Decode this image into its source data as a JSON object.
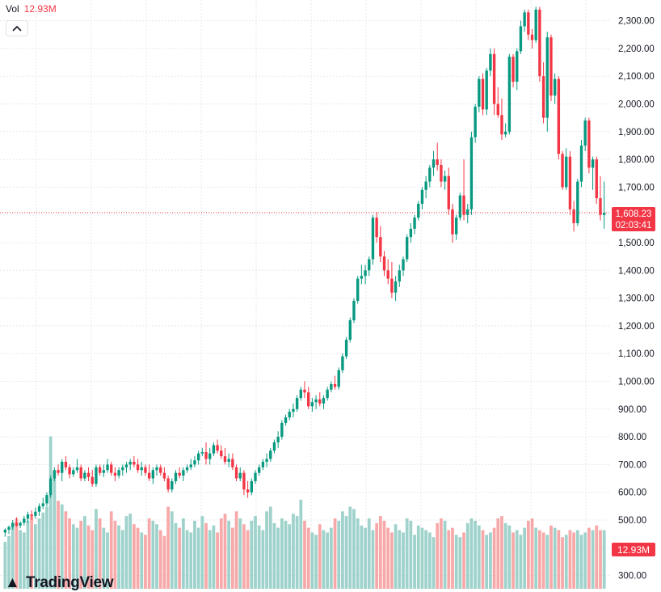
{
  "header": {
    "volume_title": "Vol",
    "volume_value": "12.93M"
  },
  "price_badge": {
    "price": "1,608.23",
    "countdown": "02:03:41"
  },
  "volume_badge": {
    "value": "12.93M"
  },
  "branding": {
    "logo_text": "TradingView"
  },
  "colors": {
    "up": "#089981",
    "down": "#f23645",
    "up_vol": "#9ed2cb",
    "down_vol": "#f7a9a9",
    "grid": "#e6e8ee"
  },
  "chart_data": {
    "type": "candlestick",
    "price_axis": {
      "range": [
        1550,
        2360
      ],
      "ticks": [
        "1,500.00",
        "1,600.00",
        "1,700.00",
        "1,800.00",
        "1,900.00",
        "2,000.00",
        "2,100.00",
        "2,200.00",
        "2,300.00"
      ],
      "tick_values": [
        1500,
        1600,
        1700,
        1800,
        1900,
        2000,
        2100,
        2200,
        2300
      ]
    },
    "lower_axis_ticks": [
      "300.00",
      "400.00",
      "500.00",
      "600.00",
      "700.00",
      "800.00",
      "900.00",
      "1,000.00",
      "1,100.00",
      "1,200.00",
      "1,300.00",
      "1,400.00"
    ],
    "lower_axis_values": [
      300,
      400,
      500,
      600,
      700,
      800,
      900,
      1000,
      1100,
      1200,
      1300,
      1400
    ],
    "last_price": 1608.23,
    "candles": [
      [
        455,
        470,
        440,
        465
      ],
      [
        465,
        480,
        450,
        475
      ],
      [
        475,
        500,
        465,
        490
      ],
      [
        490,
        510,
        475,
        480
      ],
      [
        480,
        495,
        470,
        490
      ],
      [
        490,
        515,
        480,
        505
      ],
      [
        505,
        530,
        490,
        520
      ],
      [
        520,
        535,
        500,
        515
      ],
      [
        515,
        545,
        505,
        530
      ],
      [
        530,
        560,
        515,
        550
      ],
      [
        550,
        580,
        540,
        560
      ],
      [
        560,
        600,
        550,
        590
      ],
      [
        590,
        660,
        580,
        650
      ],
      [
        650,
        690,
        640,
        680
      ],
      [
        680,
        700,
        660,
        670
      ],
      [
        670,
        720,
        640,
        710
      ],
      [
        710,
        730,
        680,
        690
      ],
      [
        690,
        700,
        650,
        665
      ],
      [
        665,
        690,
        655,
        680
      ],
      [
        680,
        720,
        670,
        690
      ],
      [
        690,
        700,
        640,
        650
      ],
      [
        650,
        680,
        640,
        670
      ],
      [
        670,
        690,
        640,
        655
      ],
      [
        655,
        680,
        620,
        630
      ],
      [
        630,
        700,
        620,
        690
      ],
      [
        690,
        700,
        660,
        670
      ],
      [
        670,
        700,
        655,
        680
      ],
      [
        680,
        720,
        670,
        700
      ],
      [
        700,
        710,
        660,
        670
      ],
      [
        670,
        690,
        640,
        660
      ],
      [
        660,
        690,
        650,
        680
      ],
      [
        680,
        700,
        660,
        690
      ],
      [
        690,
        710,
        670,
        700
      ],
      [
        700,
        720,
        680,
        710
      ],
      [
        710,
        730,
        690,
        700
      ],
      [
        700,
        720,
        670,
        680
      ],
      [
        680,
        710,
        660,
        690
      ],
      [
        690,
        700,
        660,
        670
      ],
      [
        670,
        700,
        640,
        650
      ],
      [
        650,
        690,
        630,
        680
      ],
      [
        680,
        700,
        660,
        690
      ],
      [
        690,
        700,
        660,
        670
      ],
      [
        670,
        690,
        640,
        650
      ],
      [
        650,
        660,
        600,
        610
      ],
      [
        610,
        650,
        600,
        640
      ],
      [
        640,
        680,
        630,
        670
      ],
      [
        670,
        690,
        650,
        660
      ],
      [
        660,
        690,
        640,
        680
      ],
      [
        680,
        700,
        670,
        690
      ],
      [
        690,
        720,
        680,
        700
      ],
      [
        700,
        730,
        690,
        715
      ],
      [
        715,
        750,
        700,
        740
      ],
      [
        740,
        760,
        730,
        745
      ],
      [
        745,
        780,
        700,
        720
      ],
      [
        720,
        760,
        700,
        740
      ],
      [
        740,
        780,
        730,
        770
      ],
      [
        770,
        790,
        740,
        750
      ],
      [
        750,
        770,
        720,
        730
      ],
      [
        730,
        760,
        700,
        710
      ],
      [
        710,
        740,
        690,
        720
      ],
      [
        720,
        740,
        680,
        690
      ],
      [
        690,
        700,
        640,
        650
      ],
      [
        650,
        690,
        640,
        670
      ],
      [
        670,
        680,
        590,
        610
      ],
      [
        610,
        640,
        580,
        600
      ],
      [
        600,
        650,
        590,
        640
      ],
      [
        640,
        680,
        630,
        670
      ],
      [
        670,
        700,
        660,
        690
      ],
      [
        690,
        720,
        680,
        710
      ],
      [
        710,
        740,
        690,
        720
      ],
      [
        720,
        760,
        710,
        750
      ],
      [
        750,
        790,
        740,
        780
      ],
      [
        780,
        820,
        760,
        800
      ],
      [
        800,
        860,
        790,
        850
      ],
      [
        850,
        880,
        840,
        870
      ],
      [
        870,
        900,
        860,
        890
      ],
      [
        890,
        920,
        870,
        900
      ],
      [
        900,
        950,
        890,
        940
      ],
      [
        940,
        980,
        930,
        970
      ],
      [
        970,
        1000,
        940,
        960
      ],
      [
        960,
        980,
        900,
        910
      ],
      [
        910,
        940,
        890,
        925
      ],
      [
        925,
        950,
        900,
        935
      ],
      [
        935,
        960,
        910,
        920
      ],
      [
        920,
        950,
        900,
        940
      ],
      [
        940,
        980,
        930,
        970
      ],
      [
        970,
        1000,
        960,
        990
      ],
      [
        990,
        1020,
        970,
        980
      ],
      [
        980,
        1050,
        970,
        1040
      ],
      [
        1040,
        1100,
        1030,
        1090
      ],
      [
        1090,
        1160,
        1080,
        1150
      ],
      [
        1150,
        1230,
        1140,
        1220
      ],
      [
        1220,
        1300,
        1210,
        1290
      ],
      [
        1290,
        1380,
        1280,
        1370
      ],
      [
        1370,
        1420,
        1350,
        1380
      ],
      [
        1380,
        1420,
        1350,
        1400
      ],
      [
        1400,
        1450,
        1380,
        1440
      ],
      [
        1440,
        1600,
        1420,
        1590
      ],
      [
        1590,
        1610,
        1500,
        1520
      ],
      [
        1520,
        1560,
        1430,
        1450
      ],
      [
        1450,
        1470,
        1380,
        1400
      ],
      [
        1400,
        1440,
        1350,
        1370
      ],
      [
        1370,
        1430,
        1300,
        1320
      ],
      [
        1320,
        1380,
        1290,
        1360
      ],
      [
        1360,
        1420,
        1340,
        1400
      ],
      [
        1400,
        1450,
        1380,
        1440
      ],
      [
        1440,
        1530,
        1430,
        1520
      ],
      [
        1520,
        1570,
        1500,
        1550
      ],
      [
        1550,
        1600,
        1530,
        1590
      ],
      [
        1590,
        1650,
        1580,
        1640
      ],
      [
        1640,
        1700,
        1620,
        1690
      ],
      [
        1690,
        1740,
        1660,
        1720
      ],
      [
        1720,
        1780,
        1700,
        1770
      ],
      [
        1770,
        1830,
        1740,
        1800
      ],
      [
        1800,
        1860,
        1760,
        1780
      ],
      [
        1780,
        1800,
        1700,
        1720
      ],
      [
        1720,
        1760,
        1690,
        1740
      ],
      [
        1740,
        1770,
        1600,
        1620
      ],
      [
        1620,
        1640,
        1500,
        1530
      ],
      [
        1530,
        1600,
        1510,
        1590
      ],
      [
        1590,
        1680,
        1580,
        1670
      ],
      [
        1670,
        1800,
        1580,
        1600
      ],
      [
        1600,
        1640,
        1570,
        1620
      ],
      [
        1620,
        1900,
        1600,
        1880
      ],
      [
        1880,
        2000,
        1860,
        1990
      ],
      [
        1990,
        2100,
        1970,
        2090
      ],
      [
        2090,
        2110,
        1960,
        1980
      ],
      [
        1980,
        2130,
        1960,
        2120
      ],
      [
        2120,
        2200,
        2100,
        2180
      ],
      [
        2180,
        2200,
        1960,
        2000
      ],
      [
        2000,
        2060,
        1950,
        1960
      ],
      [
        1960,
        2020,
        1870,
        1890
      ],
      [
        1890,
        1930,
        1880,
        1900
      ],
      [
        1900,
        2180,
        1890,
        2170
      ],
      [
        2170,
        2180,
        2060,
        2080
      ],
      [
        2080,
        2200,
        2050,
        2190
      ],
      [
        2190,
        2300,
        2180,
        2280
      ],
      [
        2280,
        2340,
        2260,
        2330
      ],
      [
        2330,
        2340,
        2230,
        2250
      ],
      [
        2250,
        2270,
        2200,
        2230
      ],
      [
        2230,
        2350,
        2220,
        2340
      ],
      [
        2340,
        2350,
        2080,
        2100
      ],
      [
        2100,
        2150,
        1930,
        1950
      ],
      [
        1950,
        2260,
        1900,
        2240
      ],
      [
        2240,
        2250,
        2010,
        2030
      ],
      [
        2030,
        2110,
        2000,
        2090
      ],
      [
        2090,
        2100,
        1800,
        1820
      ],
      [
        1820,
        1830,
        1690,
        1700
      ],
      [
        1700,
        1840,
        1690,
        1810
      ],
      [
        1810,
        1830,
        1600,
        1620
      ],
      [
        1620,
        1650,
        1540,
        1570
      ],
      [
        1570,
        1730,
        1560,
        1720
      ],
      [
        1720,
        1870,
        1700,
        1850
      ],
      [
        1850,
        1950,
        1830,
        1940
      ],
      [
        1940,
        1950,
        1750,
        1770
      ],
      [
        1770,
        1810,
        1690,
        1800
      ],
      [
        1800,
        1810,
        1640,
        1660
      ],
      [
        1660,
        1740,
        1580,
        1600
      ],
      [
        1600,
        1720,
        1550,
        1608
      ]
    ],
    "volumes": [
      40,
      45,
      55,
      60,
      50,
      48,
      58,
      62,
      55,
      60,
      65,
      70,
      130,
      100,
      75,
      72,
      66,
      60,
      55,
      52,
      58,
      62,
      54,
      50,
      68,
      60,
      52,
      48,
      66,
      58,
      54,
      50,
      62,
      64,
      55,
      52,
      48,
      46,
      60,
      58,
      55,
      50,
      45,
      70,
      66,
      56,
      52,
      60,
      50,
      48,
      58,
      52,
      62,
      56,
      50,
      54,
      48,
      60,
      64,
      58,
      52,
      66,
      60,
      55,
      50,
      58,
      62,
      54,
      50,
      66,
      70,
      56,
      52,
      60,
      58,
      55,
      64,
      62,
      76,
      58,
      52,
      48,
      46,
      55,
      50,
      48,
      52,
      60,
      58,
      66,
      62,
      70,
      68,
      60,
      54,
      52,
      60,
      50,
      56,
      62,
      58,
      52,
      48,
      55,
      50,
      48,
      60,
      58,
      46,
      54,
      52,
      50,
      48,
      44,
      56,
      60,
      58,
      50,
      52,
      46,
      44,
      48,
      56,
      60,
      58,
      54,
      50,
      46,
      48,
      52,
      60,
      62,
      56,
      54,
      48,
      50,
      46,
      52,
      58,
      60,
      52,
      50,
      48,
      46,
      54,
      52,
      50,
      44,
      46,
      50,
      48,
      50,
      46,
      48,
      52,
      50,
      54
    ]
  }
}
